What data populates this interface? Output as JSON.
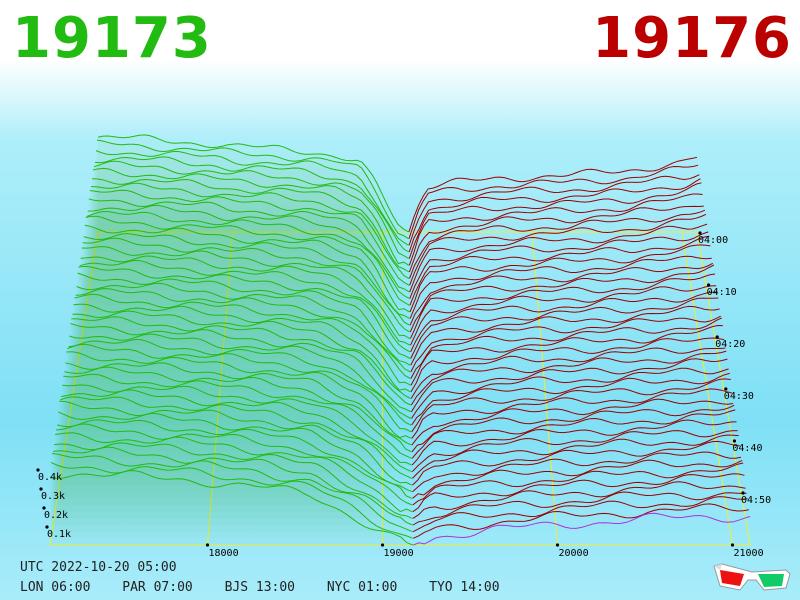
{
  "header": {
    "bid_value": "19173",
    "ask_value": "19176",
    "bid_color": "#22bb11",
    "ask_color": "#bb0000"
  },
  "footer": {
    "utc_label": "UTC 2022-10-20 05:00",
    "zones": [
      "LON 06:00",
      "PAR 07:00",
      "BJS 13:00",
      "NYC 01:00",
      "TYO 14:00"
    ]
  },
  "glasses_icon": "3d-glasses-icon",
  "chart_data": {
    "type": "3d-depth",
    "title": "",
    "x_ticks": [
      "18000",
      "19000",
      "20000",
      "21000"
    ],
    "x_values": [
      18000,
      19000,
      20000,
      21000
    ],
    "xlim": [
      17100,
      21100
    ],
    "volume_ticks": [
      "0.1k",
      "0.2k",
      "0.3k",
      "0.4k"
    ],
    "time_ticks": [
      "04:00",
      "04:10",
      "04:20",
      "04:30",
      "04:40",
      "04:50"
    ],
    "bid_price": 19173,
    "ask_price": 19176,
    "bid_color": "#22bb11",
    "ask_color": "#990000",
    "grid_color": "#eeee33",
    "bid_depth_far": [
      [
        17100,
        0.42
      ],
      [
        17200,
        0.42
      ],
      [
        17500,
        0.41
      ],
      [
        17900,
        0.39
      ],
      [
        18000,
        0.38
      ],
      [
        18300,
        0.37
      ],
      [
        18500,
        0.36
      ],
      [
        18700,
        0.34
      ],
      [
        18850,
        0.31
      ],
      [
        18950,
        0.22
      ],
      [
        19100,
        0.03
      ],
      [
        19173,
        0.0
      ]
    ],
    "ask_depth_far": [
      [
        19176,
        0.0
      ],
      [
        19200,
        0.05
      ],
      [
        19250,
        0.14
      ],
      [
        19300,
        0.2
      ],
      [
        19500,
        0.22
      ],
      [
        19800,
        0.24
      ],
      [
        20200,
        0.25
      ],
      [
        20600,
        0.27
      ],
      [
        21000,
        0.31
      ],
      [
        21100,
        0.33
      ]
    ],
    "bid_depth_near": [
      [
        17100,
        0.25
      ],
      [
        17500,
        0.24
      ],
      [
        18000,
        0.22
      ],
      [
        18300,
        0.2
      ],
      [
        18600,
        0.17
      ],
      [
        18900,
        0.08
      ],
      [
        19050,
        0.03
      ],
      [
        19173,
        0.0
      ]
    ],
    "ask_depth_near": [
      [
        19176,
        0.0
      ],
      [
        19300,
        0.03
      ],
      [
        19600,
        0.05
      ],
      [
        20000,
        0.07
      ],
      [
        20500,
        0.09
      ],
      [
        21100,
        0.1
      ]
    ],
    "snapshots": 48
  }
}
